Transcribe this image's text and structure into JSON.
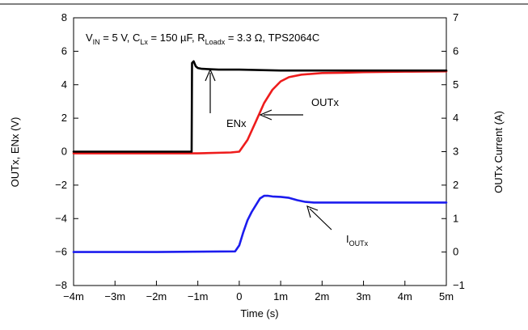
{
  "chart_data": {
    "type": "line",
    "title": "",
    "xlabel": "Time (s)",
    "ylabel": "OUTx, ENx (V)",
    "y2label": "OUTx Current (A)",
    "xlim": [
      -4,
      5
    ],
    "ylim": [
      -8,
      8
    ],
    "y2lim": [
      -1,
      7
    ],
    "x_ticks": [
      -4,
      -3,
      -2,
      -1,
      0,
      1,
      2,
      3,
      4,
      5
    ],
    "x_tick_labels": [
      "−4m",
      "−3m",
      "−2m",
      "−1m",
      "0",
      "1m",
      "2m",
      "3m",
      "4m",
      "5m"
    ],
    "y_ticks": [
      -8,
      -6,
      -4,
      -2,
      0,
      2,
      4,
      6,
      8
    ],
    "y_tick_labels": [
      "−8",
      "−6",
      "−4",
      "−2",
      "0",
      "2",
      "4",
      "6",
      "8"
    ],
    "y2_ticks": [
      -1,
      0,
      1,
      2,
      3,
      4,
      5,
      6,
      7
    ],
    "y2_tick_labels": [
      "−1",
      "0",
      "1",
      "2",
      "3",
      "4",
      "5",
      "6",
      "7"
    ],
    "grid": false,
    "legend": "none",
    "conditions": {
      "v_label": "V",
      "v_sub": "IN",
      "v_value": " = 5 V, ",
      "c_label": "C",
      "c_sub": "Lx",
      "c_value": " = 150 µF, ",
      "r_label": "R",
      "r_sub": "Loadx",
      "r_value": " = 3.3 Ω, TPS2064C"
    },
    "series": [
      {
        "name": "OUTx",
        "color": "#ee1c1c",
        "axis": "left",
        "x": [
          -4.0,
          -3.0,
          -2.0,
          -1.0,
          -0.2,
          0.0,
          0.2,
          0.4,
          0.6,
          0.8,
          1.0,
          1.2,
          1.5,
          2.0,
          2.5,
          3.0,
          4.0,
          5.0
        ],
        "y": [
          -0.1,
          -0.1,
          -0.1,
          -0.1,
          -0.05,
          0.0,
          0.7,
          1.8,
          2.9,
          3.7,
          4.2,
          4.45,
          4.6,
          4.7,
          4.72,
          4.75,
          4.78,
          4.8
        ]
      },
      {
        "name": "ENx",
        "color": "#000000",
        "axis": "left",
        "x": [
          -4.0,
          -2.0,
          -1.15,
          -1.14,
          -1.1,
          -1.05,
          -1.0,
          -0.9,
          -0.5,
          0.0,
          1.0,
          2.0,
          3.0,
          4.0,
          5.0
        ],
        "y": [
          0.0,
          0.0,
          0.0,
          5.3,
          5.4,
          5.1,
          5.0,
          4.95,
          4.9,
          4.9,
          4.85,
          4.85,
          4.85,
          4.85,
          4.85
        ]
      },
      {
        "name": "IOUTx",
        "color": "#1c1cee",
        "axis": "right",
        "x": [
          -4.0,
          -2.0,
          -0.1,
          0.0,
          0.1,
          0.2,
          0.3,
          0.4,
          0.5,
          0.6,
          0.7,
          0.8,
          1.0,
          1.2,
          1.4,
          1.6,
          1.8,
          2.0,
          3.0,
          4.0,
          5.0
        ],
        "y": [
          0.0,
          0.0,
          0.02,
          0.2,
          0.6,
          0.95,
          1.2,
          1.4,
          1.6,
          1.68,
          1.68,
          1.66,
          1.65,
          1.62,
          1.55,
          1.5,
          1.48,
          1.48,
          1.48,
          1.48,
          1.48
        ]
      }
    ],
    "annotations": [
      {
        "text": "OUTx",
        "sub": ""
      },
      {
        "text": "ENx",
        "sub": ""
      },
      {
        "text": "I",
        "sub": "OUTx"
      }
    ]
  }
}
